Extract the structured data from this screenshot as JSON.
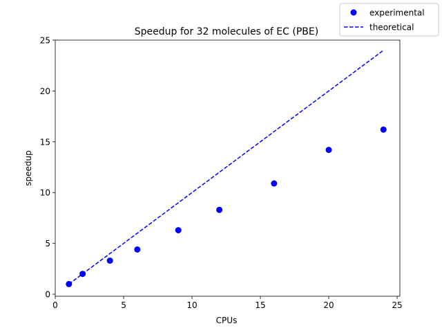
{
  "chart_data": {
    "type": "scatter",
    "title": "Speedup for 32 molecules of EC (PBE)",
    "xlabel": "CPUs",
    "ylabel": "speedup",
    "xlim": [
      0,
      25.2
    ],
    "ylim": [
      -0.2,
      25.0
    ],
    "xticks": [
      0,
      5,
      10,
      15,
      20,
      25
    ],
    "yticks": [
      0,
      5,
      10,
      15,
      20,
      25
    ],
    "grid": false,
    "legend_position": "top-right-outside",
    "series": [
      {
        "name": "experimental",
        "kind": "scatter",
        "color": "#0000ff",
        "x": [
          1,
          2,
          4,
          6,
          9,
          12,
          16,
          20,
          24
        ],
        "y": [
          1.0,
          2.0,
          3.3,
          4.4,
          6.3,
          8.3,
          10.9,
          14.2,
          16.2
        ]
      },
      {
        "name": "theoretical",
        "kind": "line",
        "style": "dashed",
        "color": "#0000ff",
        "x": [
          1,
          24
        ],
        "y": [
          1,
          24
        ]
      }
    ]
  }
}
